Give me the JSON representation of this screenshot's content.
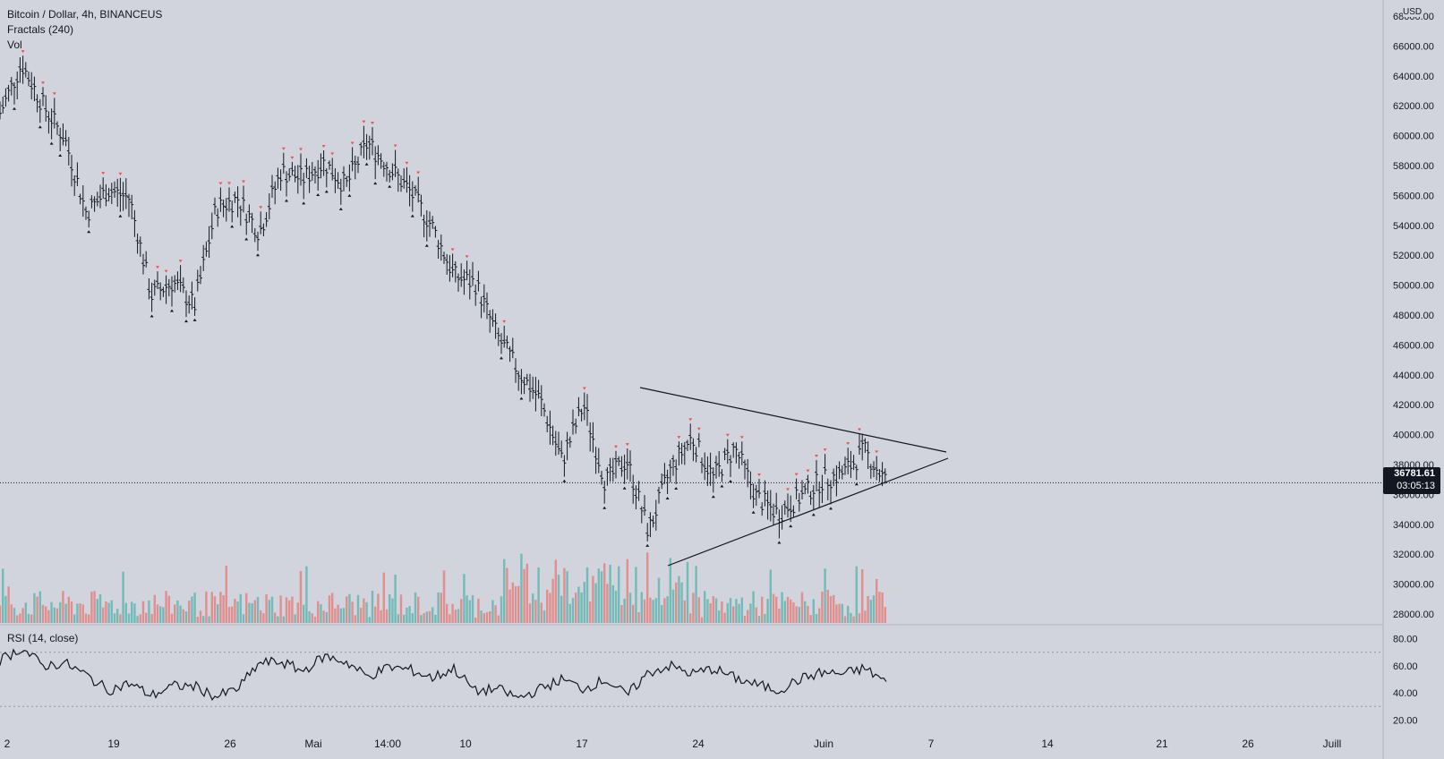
{
  "header": {
    "title": "Bitcoin / Dollar, 4h, BINANCEUS",
    "indicator_fractals": "Fractals (240)",
    "indicator_vol": "Vol"
  },
  "rsi": {
    "label": "RSI (14, close)"
  },
  "price_axis": {
    "currency": "USD"
  },
  "current": {
    "price": "36781.61",
    "countdown": "03:05:13"
  },
  "colors": {
    "background": "#d1d4dc",
    "candle": "#131722",
    "volume_up": "#26a69a",
    "volume_down": "#ef5350",
    "fractal_up": "#ef5350",
    "fractal_down": "#131722"
  },
  "chart_data": {
    "type": "line",
    "symbol": "Bitcoin / Dollar",
    "interval": "4h",
    "exchange": "BINANCEUS",
    "ylim": [
      26000,
      69000
    ],
    "y_ticks": [
      "68000.00",
      "66000.00",
      "64000.00",
      "62000.00",
      "60000.00",
      "58000.00",
      "56000.00",
      "54000.00",
      "52000.00",
      "50000.00",
      "48000.00",
      "46000.00",
      "44000.00",
      "42000.00",
      "40000.00",
      "38000.00",
      "36000.00",
      "34000.00",
      "32000.00",
      "30000.00",
      "28000.00"
    ],
    "x_ticks": [
      "2",
      "19",
      "26",
      "Mai",
      "14:00",
      "10",
      "17",
      "24",
      "Juin",
      "7",
      "14",
      "21",
      "26",
      "Juill"
    ],
    "price_path": [
      [
        "2",
        61500
      ],
      [
        "4",
        64800
      ],
      [
        "8",
        62000
      ],
      [
        "10",
        59800
      ],
      [
        "12",
        54800
      ],
      [
        "15",
        56400
      ],
      [
        "17",
        55800
      ],
      [
        "18",
        49300
      ],
      [
        "21",
        50200
      ],
      [
        "23",
        48600
      ],
      [
        "26",
        55100
      ],
      [
        "28",
        55800
      ],
      [
        "29",
        53500
      ],
      [
        "Mai",
        57600
      ],
      [
        "5",
        57100
      ],
      [
        "7",
        58200
      ],
      [
        "9",
        56600
      ],
      [
        "10",
        59500
      ],
      [
        "11",
        57900
      ],
      [
        "12",
        56200
      ],
      [
        "13",
        53900
      ],
      [
        "14",
        50600
      ],
      [
        "15",
        50100
      ],
      [
        "16",
        46600
      ],
      [
        "17",
        44200
      ],
      [
        "18",
        42300
      ],
      [
        "19",
        38200
      ],
      [
        "20",
        42000
      ],
      [
        "21",
        36800
      ],
      [
        "22",
        38300
      ],
      [
        "23",
        33500
      ],
      [
        "24",
        37600
      ],
      [
        "25",
        39800
      ],
      [
        "27",
        37100
      ],
      [
        "28",
        39100
      ],
      [
        "29",
        35800
      ],
      [
        "30",
        34700
      ],
      [
        "31",
        35800
      ],
      [
        "Juin",
        36900
      ],
      [
        "2",
        37400
      ],
      [
        "3",
        38900
      ],
      [
        "4",
        36800
      ]
    ],
    "trendlines": [
      {
        "name": "resistance",
        "from": [
          "20",
          42600
        ],
        "to": [
          "7",
          38200
        ]
      },
      {
        "name": "support",
        "from": [
          "23",
          30600
        ],
        "to": [
          "7",
          37900
        ]
      }
    ],
    "volume_ylim": [
      0,
      100
    ],
    "rsi_ylim": [
      15,
      85
    ],
    "rsi_ticks": [
      "80.00",
      "60.00",
      "40.00",
      "20.00"
    ],
    "rsi_levels": [
      70,
      30
    ],
    "rsi_series": [
      [
        "2",
        64
      ],
      [
        "4",
        73
      ],
      [
        "6",
        60
      ],
      [
        "8",
        62
      ],
      [
        "10",
        53
      ],
      [
        "12",
        42
      ],
      [
        "14",
        47
      ],
      [
        "16",
        38
      ],
      [
        "18",
        45
      ],
      [
        "20",
        45
      ],
      [
        "22",
        37
      ],
      [
        "24",
        43
      ],
      [
        "26",
        62
      ],
      [
        "28",
        63
      ],
      [
        "Mai",
        56
      ],
      [
        "2",
        67
      ],
      [
        "5",
        63
      ],
      [
        "7",
        52
      ],
      [
        "9",
        59
      ],
      [
        "10",
        57
      ],
      [
        "12",
        51
      ],
      [
        "13",
        58
      ],
      [
        "15",
        41
      ],
      [
        "17",
        43
      ],
      [
        "18",
        36
      ],
      [
        "19",
        43
      ],
      [
        "20",
        50
      ],
      [
        "21",
        43
      ],
      [
        "22",
        50
      ],
      [
        "23",
        38
      ],
      [
        "24",
        55
      ],
      [
        "25",
        60
      ],
      [
        "26",
        54
      ],
      [
        "27",
        58
      ],
      [
        "28",
        51
      ],
      [
        "29",
        46
      ],
      [
        "30",
        42
      ],
      [
        "31",
        50
      ],
      [
        "Juin",
        55
      ],
      [
        "2",
        54
      ],
      [
        "3",
        58
      ],
      [
        "4",
        48
      ]
    ]
  }
}
